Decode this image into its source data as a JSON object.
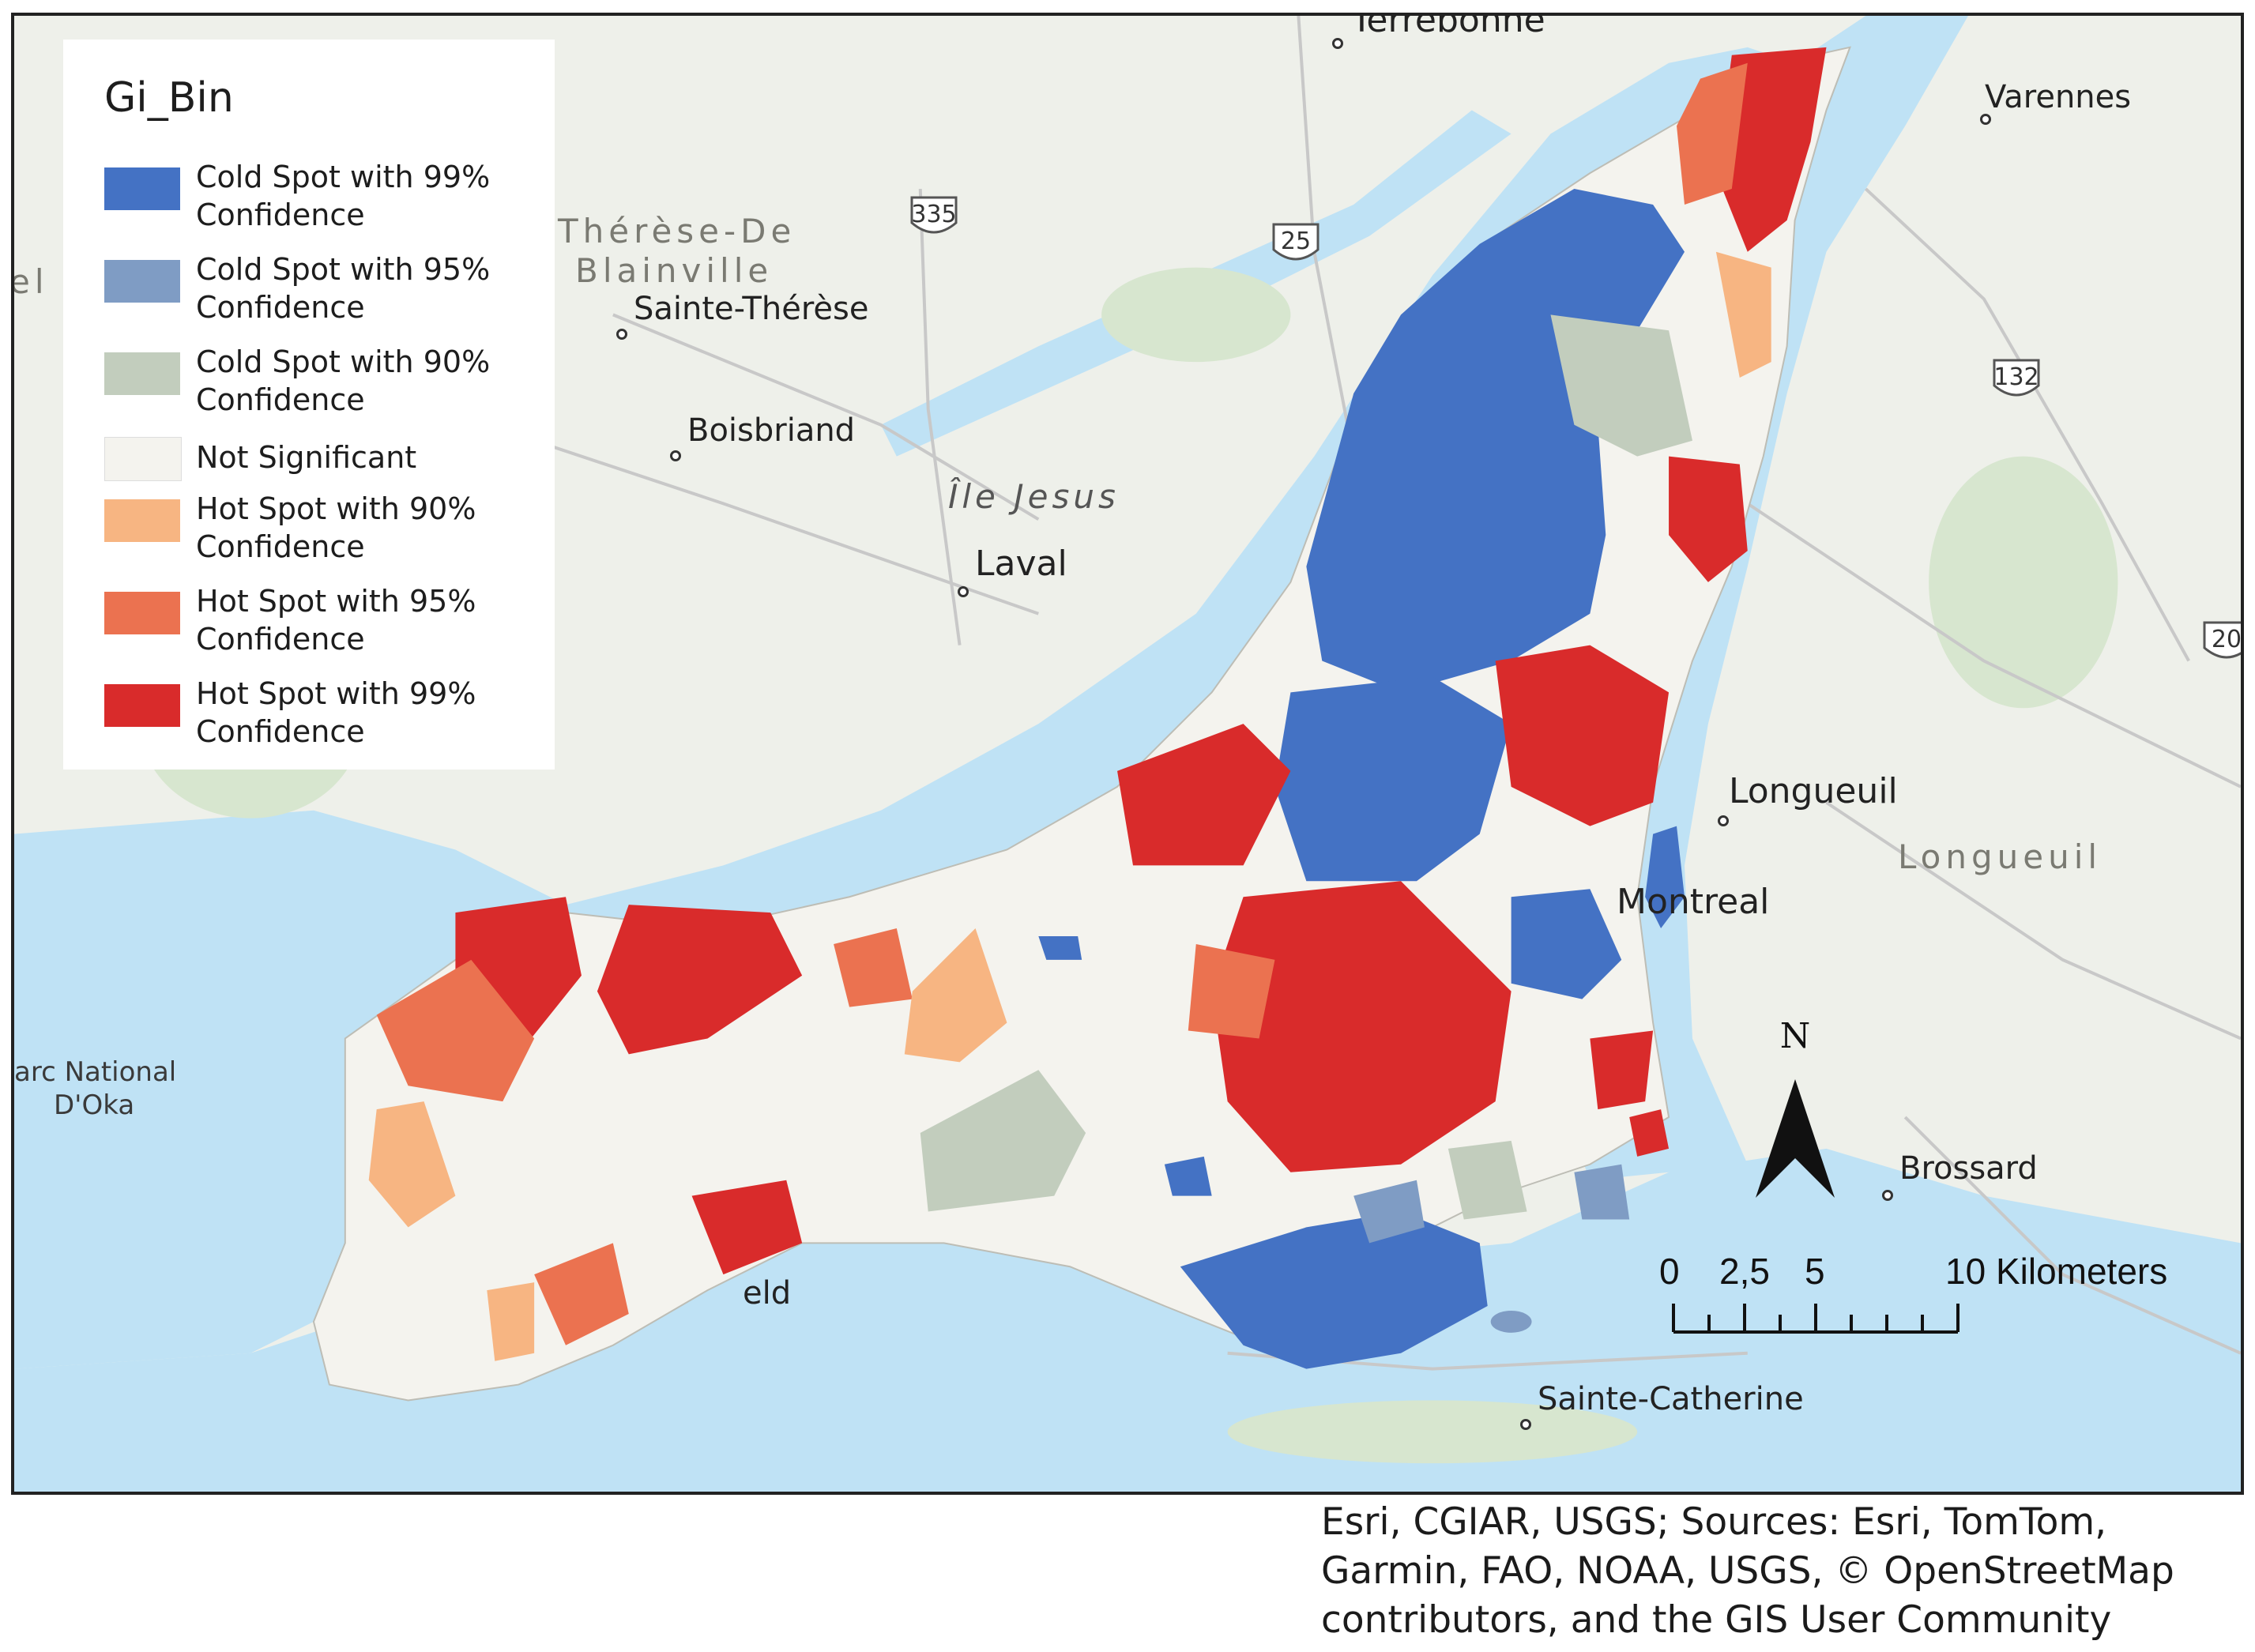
{
  "legend": {
    "title": "Gi_Bin",
    "items": [
      {
        "label": "Cold Spot with 99% Confidence",
        "color": "#4472c4"
      },
      {
        "label": "Cold Spot with 95% Confidence",
        "color": "#7f9cc4"
      },
      {
        "label": "Cold Spot with 90% Confidence",
        "color": "#c2cdbd"
      },
      {
        "label": "Not Significant",
        "color": "#f4f3ee"
      },
      {
        "label": "Hot Spot with 90% Confidence",
        "color": "#f7b582"
      },
      {
        "label": "Hot Spot with 95% Confidence",
        "color": "#eb7250"
      },
      {
        "label": "Hot Spot with 99% Confidence",
        "color": "#d92b2b"
      }
    ]
  },
  "places": {
    "terrebonne": "Terrebonne",
    "varennes": "Varennes",
    "therese_de": "Thérèse-De",
    "blainville": "Blainville",
    "sainte_therese": "Sainte-Thérèse",
    "boisbriand": "Boisbriand",
    "ile_jesus": "Île Jesus",
    "laval": "Laval",
    "longueuil_city": "Longueuil",
    "longueuil_region": "Longueuil",
    "montreal": "Montreal",
    "brossard": "Brossard",
    "sainte_catherine": "Sainte-Catherine",
    "parc_oka_line1": "arc National",
    "parc_oka_line2": "D'Oka",
    "beaconsfield_partial": "eld",
    "left_edge": "el"
  },
  "routes": {
    "r335": "335",
    "r25": "25",
    "r132": "132",
    "r20": "20"
  },
  "north_arrow": {
    "label": "N"
  },
  "scale_bar": {
    "labels": [
      "0",
      "2,5",
      "5",
      "10 Kilometers"
    ],
    "ticks_km": [
      0,
      2.5,
      5,
      10
    ]
  },
  "attribution": "Esri, CGIAR, USGS; Sources: Esri, TomTom, Garmin, FAO, NOAA, USGS, © OpenStreetMap contributors, and the GIS User Community",
  "colors": {
    "water": "#bfe2f5",
    "land": "#eef0ea",
    "green": "#d7e6cf",
    "road": "#cfcfcf",
    "cold99": "#4472c4",
    "cold95": "#7f9cc4",
    "cold90": "#c2cdbd",
    "notsig": "#f4f3ee",
    "hot90": "#f7b582",
    "hot95": "#eb7250",
    "hot99": "#d92b2b"
  }
}
